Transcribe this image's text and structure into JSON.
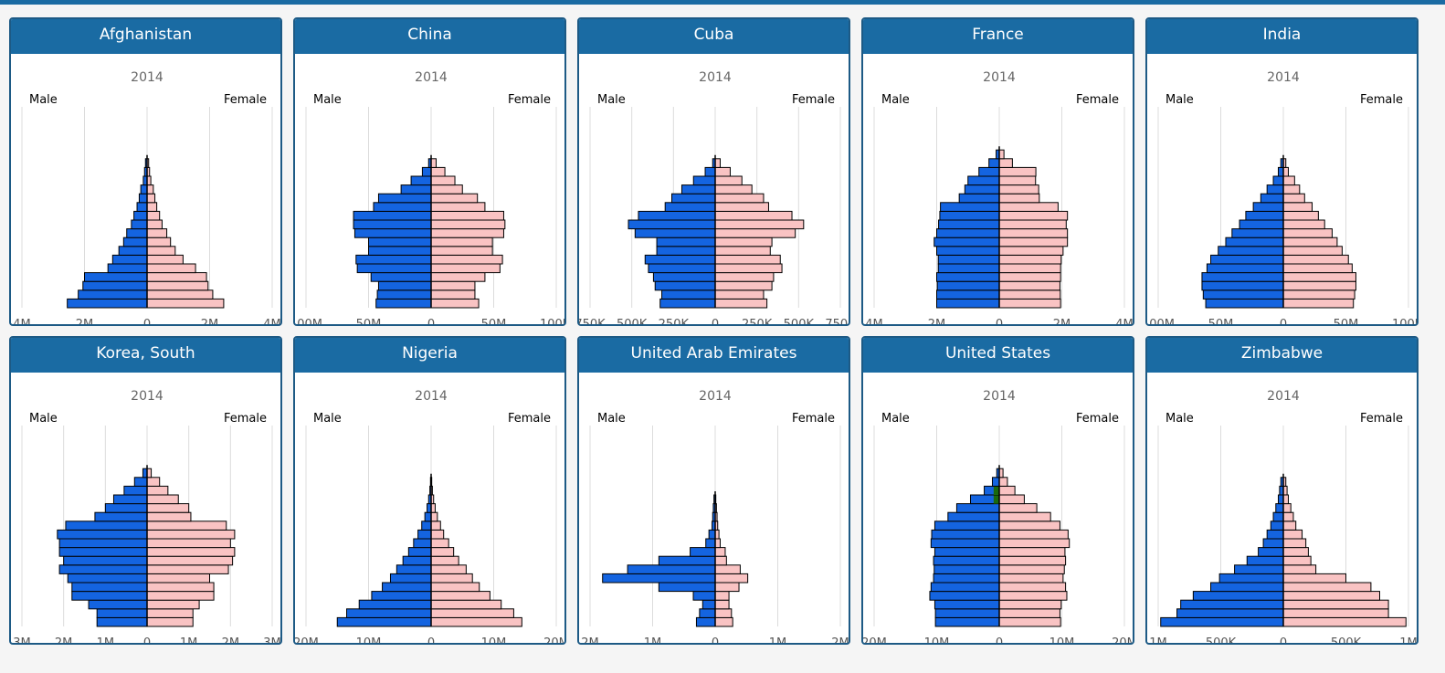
{
  "colors": {
    "header": "#1a6ba3",
    "male": "#1464e0",
    "female": "#f9c3c3",
    "highlight": "#1a6a10",
    "border": "#000000"
  },
  "charts": [
    {
      "country": "Afghanistan",
      "year": "2014",
      "male_label": "Male",
      "female_label": "Female",
      "max": 4000000,
      "ticks": [
        -4000000,
        -2000000,
        0,
        2000000,
        4000000
      ],
      "tick_labels": [
        "4M",
        "2M",
        "0",
        "2M",
        "4M"
      ],
      "male": [
        2550000,
        2200000,
        2050000,
        2000000,
        1250000,
        1100000,
        900000,
        750000,
        650000,
        500000,
        420000,
        320000,
        250000,
        200000,
        120000,
        80000,
        50000
      ],
      "female": [
        2450000,
        2100000,
        1950000,
        1900000,
        1550000,
        1150000,
        900000,
        750000,
        630000,
        480000,
        400000,
        310000,
        250000,
        200000,
        120000,
        80000,
        50000
      ]
    },
    {
      "country": "China",
      "year": "2014",
      "male_label": "Male",
      "female_label": "Female",
      "max": 100000000,
      "ticks": [
        -100000000,
        -50000000,
        0,
        50000000,
        100000000
      ],
      "tick_labels": [
        "100M",
        "50M",
        "0",
        "50M",
        "100M"
      ],
      "male": [
        44000000,
        43000000,
        42000000,
        48000000,
        59000000,
        60000000,
        50000000,
        50000000,
        61000000,
        62000000,
        62000000,
        46000000,
        42000000,
        24000000,
        16000000,
        7000000,
        2000000
      ],
      "female": [
        38000000,
        35000000,
        35000000,
        43000000,
        55000000,
        57000000,
        49000000,
        49000000,
        58000000,
        59000000,
        58000000,
        43000000,
        37000000,
        25000000,
        19000000,
        11000000,
        4000000
      ],
      "ylevels": 17
    },
    {
      "country": "Cuba",
      "year": "2014",
      "male_label": "Male",
      "female_label": "Female",
      "max": 750000,
      "ticks": [
        -750000,
        -500000,
        -250000,
        0,
        250000,
        500000,
        750000
      ],
      "tick_labels": [
        "750K",
        "500K",
        "250K",
        "0",
        "250K",
        "500K",
        "750K"
      ],
      "male": [
        330000,
        320000,
        360000,
        370000,
        400000,
        420000,
        350000,
        350000,
        480000,
        520000,
        460000,
        300000,
        260000,
        200000,
        130000,
        60000,
        15000
      ],
      "female": [
        310000,
        290000,
        340000,
        350000,
        400000,
        390000,
        330000,
        340000,
        480000,
        530000,
        460000,
        320000,
        290000,
        220000,
        160000,
        90000,
        30000
      ]
    },
    {
      "country": "France",
      "year": "2014",
      "male_label": "Male",
      "female_label": "Female",
      "max": 4000000,
      "ticks": [
        -4000000,
        -2000000,
        0,
        2000000,
        4000000
      ],
      "tick_labels": [
        "4M",
        "2M",
        "0",
        "2M",
        "4M"
      ],
      "male": [
        2000000,
        2000000,
        1980000,
        2000000,
        1950000,
        1950000,
        2000000,
        2080000,
        2000000,
        1940000,
        1900000,
        1880000,
        1280000,
        1100000,
        1000000,
        650000,
        330000,
        100000
      ],
      "female": [
        1960000,
        1950000,
        1940000,
        1960000,
        1960000,
        1980000,
        2040000,
        2180000,
        2180000,
        2140000,
        2180000,
        1880000,
        1280000,
        1260000,
        1160000,
        1170000,
        420000,
        150000
      ]
    },
    {
      "country": "India",
      "year": "2014",
      "male_label": "Male",
      "female_label": "Female",
      "max": 100000000,
      "ticks": [
        -100000000,
        -50000000,
        0,
        50000000,
        100000000
      ],
      "tick_labels": [
        "100M",
        "50M",
        "0",
        "50M",
        "100M"
      ],
      "male": [
        62000000,
        64000000,
        65000000,
        65000000,
        61000000,
        58000000,
        52000000,
        46000000,
        41000000,
        35000000,
        30000000,
        24000000,
        18000000,
        13000000,
        8000000,
        4000000,
        2000000
      ],
      "female": [
        56000000,
        57000000,
        58000000,
        58000000,
        55000000,
        52000000,
        47000000,
        43000000,
        39000000,
        33000000,
        28000000,
        23000000,
        17000000,
        13000000,
        9000000,
        4000000,
        2000000
      ]
    },
    {
      "country": "Korea, South",
      "year": "2014",
      "male_label": "Male",
      "female_label": "Female",
      "max": 3000000,
      "ticks": [
        -3000000,
        -2000000,
        -1000000,
        0,
        1000000,
        2000000,
        3000000
      ],
      "tick_labels": [
        "3M",
        "2M",
        "1M",
        "0",
        "1M",
        "2M",
        "3M"
      ],
      "male": [
        1200000,
        1200000,
        1400000,
        1800000,
        1800000,
        1900000,
        2100000,
        2000000,
        2100000,
        2100000,
        2150000,
        1950000,
        1250000,
        1000000,
        800000,
        550000,
        300000,
        100000
      ],
      "female": [
        1100000,
        1100000,
        1250000,
        1600000,
        1600000,
        1500000,
        1950000,
        2050000,
        2100000,
        2000000,
        2100000,
        1900000,
        1050000,
        1000000,
        750000,
        500000,
        300000,
        100000
      ],
      "ylevels": 19
    },
    {
      "country": "Nigeria",
      "year": "2014",
      "male_label": "Male",
      "female_label": "Female",
      "max": 20000000,
      "ticks": [
        -20000000,
        -10000000,
        0,
        10000000,
        20000000
      ],
      "tick_labels": [
        "20M",
        "10M",
        "0",
        "10M",
        "20M"
      ],
      "male": [
        15000000,
        13500000,
        11500000,
        9500000,
        7800000,
        6500000,
        5500000,
        4500000,
        3600000,
        2800000,
        2100000,
        1500000,
        1000000,
        650000,
        400000,
        200000,
        100000
      ],
      "female": [
        14500000,
        13200000,
        11200000,
        9400000,
        7700000,
        6600000,
        5600000,
        4400000,
        3600000,
        2800000,
        2000000,
        1500000,
        1000000,
        650000,
        400000,
        200000,
        100000
      ],
      "ylevels": 20
    },
    {
      "country": "United Arab Emirates",
      "year": "2014",
      "male_label": "Male",
      "female_label": "Female",
      "max": 2000000,
      "ticks": [
        -2000000,
        -1000000,
        0,
        1000000,
        2000000
      ],
      "tick_labels": [
        "2M",
        "1M",
        "0",
        "1M",
        "2M"
      ],
      "male": [
        300000,
        250000,
        200000,
        350000,
        900000,
        1800000,
        1400000,
        900000,
        400000,
        150000,
        100000,
        50000,
        40000,
        30000,
        20000
      ],
      "female": [
        280000,
        260000,
        220000,
        220000,
        380000,
        520000,
        400000,
        180000,
        160000,
        80000,
        60000,
        40000,
        30000,
        20000,
        10000
      ],
      "ylevels": 20
    },
    {
      "country": "United States",
      "year": "2014",
      "male_label": "Male",
      "female_label": "Female",
      "max": 20000000,
      "ticks": [
        -20000000,
        -10000000,
        0,
        10000000,
        20000000
      ],
      "tick_labels": [
        "20M",
        "10M",
        "0",
        "10M",
        "20M"
      ],
      "male": [
        10200000,
        10200000,
        10300000,
        11100000,
        10900000,
        10500000,
        10400000,
        10500000,
        10300000,
        10900000,
        10800000,
        10300000,
        8200000,
        6800000,
        4600000,
        2400000,
        1100000,
        400000
      ],
      "female": [
        9800000,
        9700000,
        9900000,
        10800000,
        10600000,
        10200000,
        10400000,
        10600000,
        10500000,
        11200000,
        11000000,
        9700000,
        8200000,
        6000000,
        4000000,
        2500000,
        1300000,
        600000
      ],
      "highlight_male": [
        0,
        0,
        0,
        0,
        0,
        0,
        0,
        0,
        0,
        0,
        0,
        0,
        0,
        0,
        1500000,
        1500000,
        0,
        0
      ]
    },
    {
      "country": "Zimbabwe",
      "year": "2014",
      "male_label": "Male",
      "female_label": "Female",
      "max": 1000000,
      "ticks": [
        -1000000,
        -500000,
        0,
        500000,
        1000000
      ],
      "tick_labels": [
        "1M",
        "500K",
        "0",
        "500K",
        "1M"
      ],
      "male": [
        980000,
        850000,
        820000,
        720000,
        580000,
        510000,
        390000,
        290000,
        200000,
        160000,
        130000,
        100000,
        80000,
        60000,
        40000,
        30000,
        20000
      ],
      "female": [
        980000,
        840000,
        840000,
        770000,
        700000,
        500000,
        260000,
        220000,
        200000,
        180000,
        150000,
        100000,
        80000,
        60000,
        40000,
        30000,
        20000
      ]
    }
  ]
}
